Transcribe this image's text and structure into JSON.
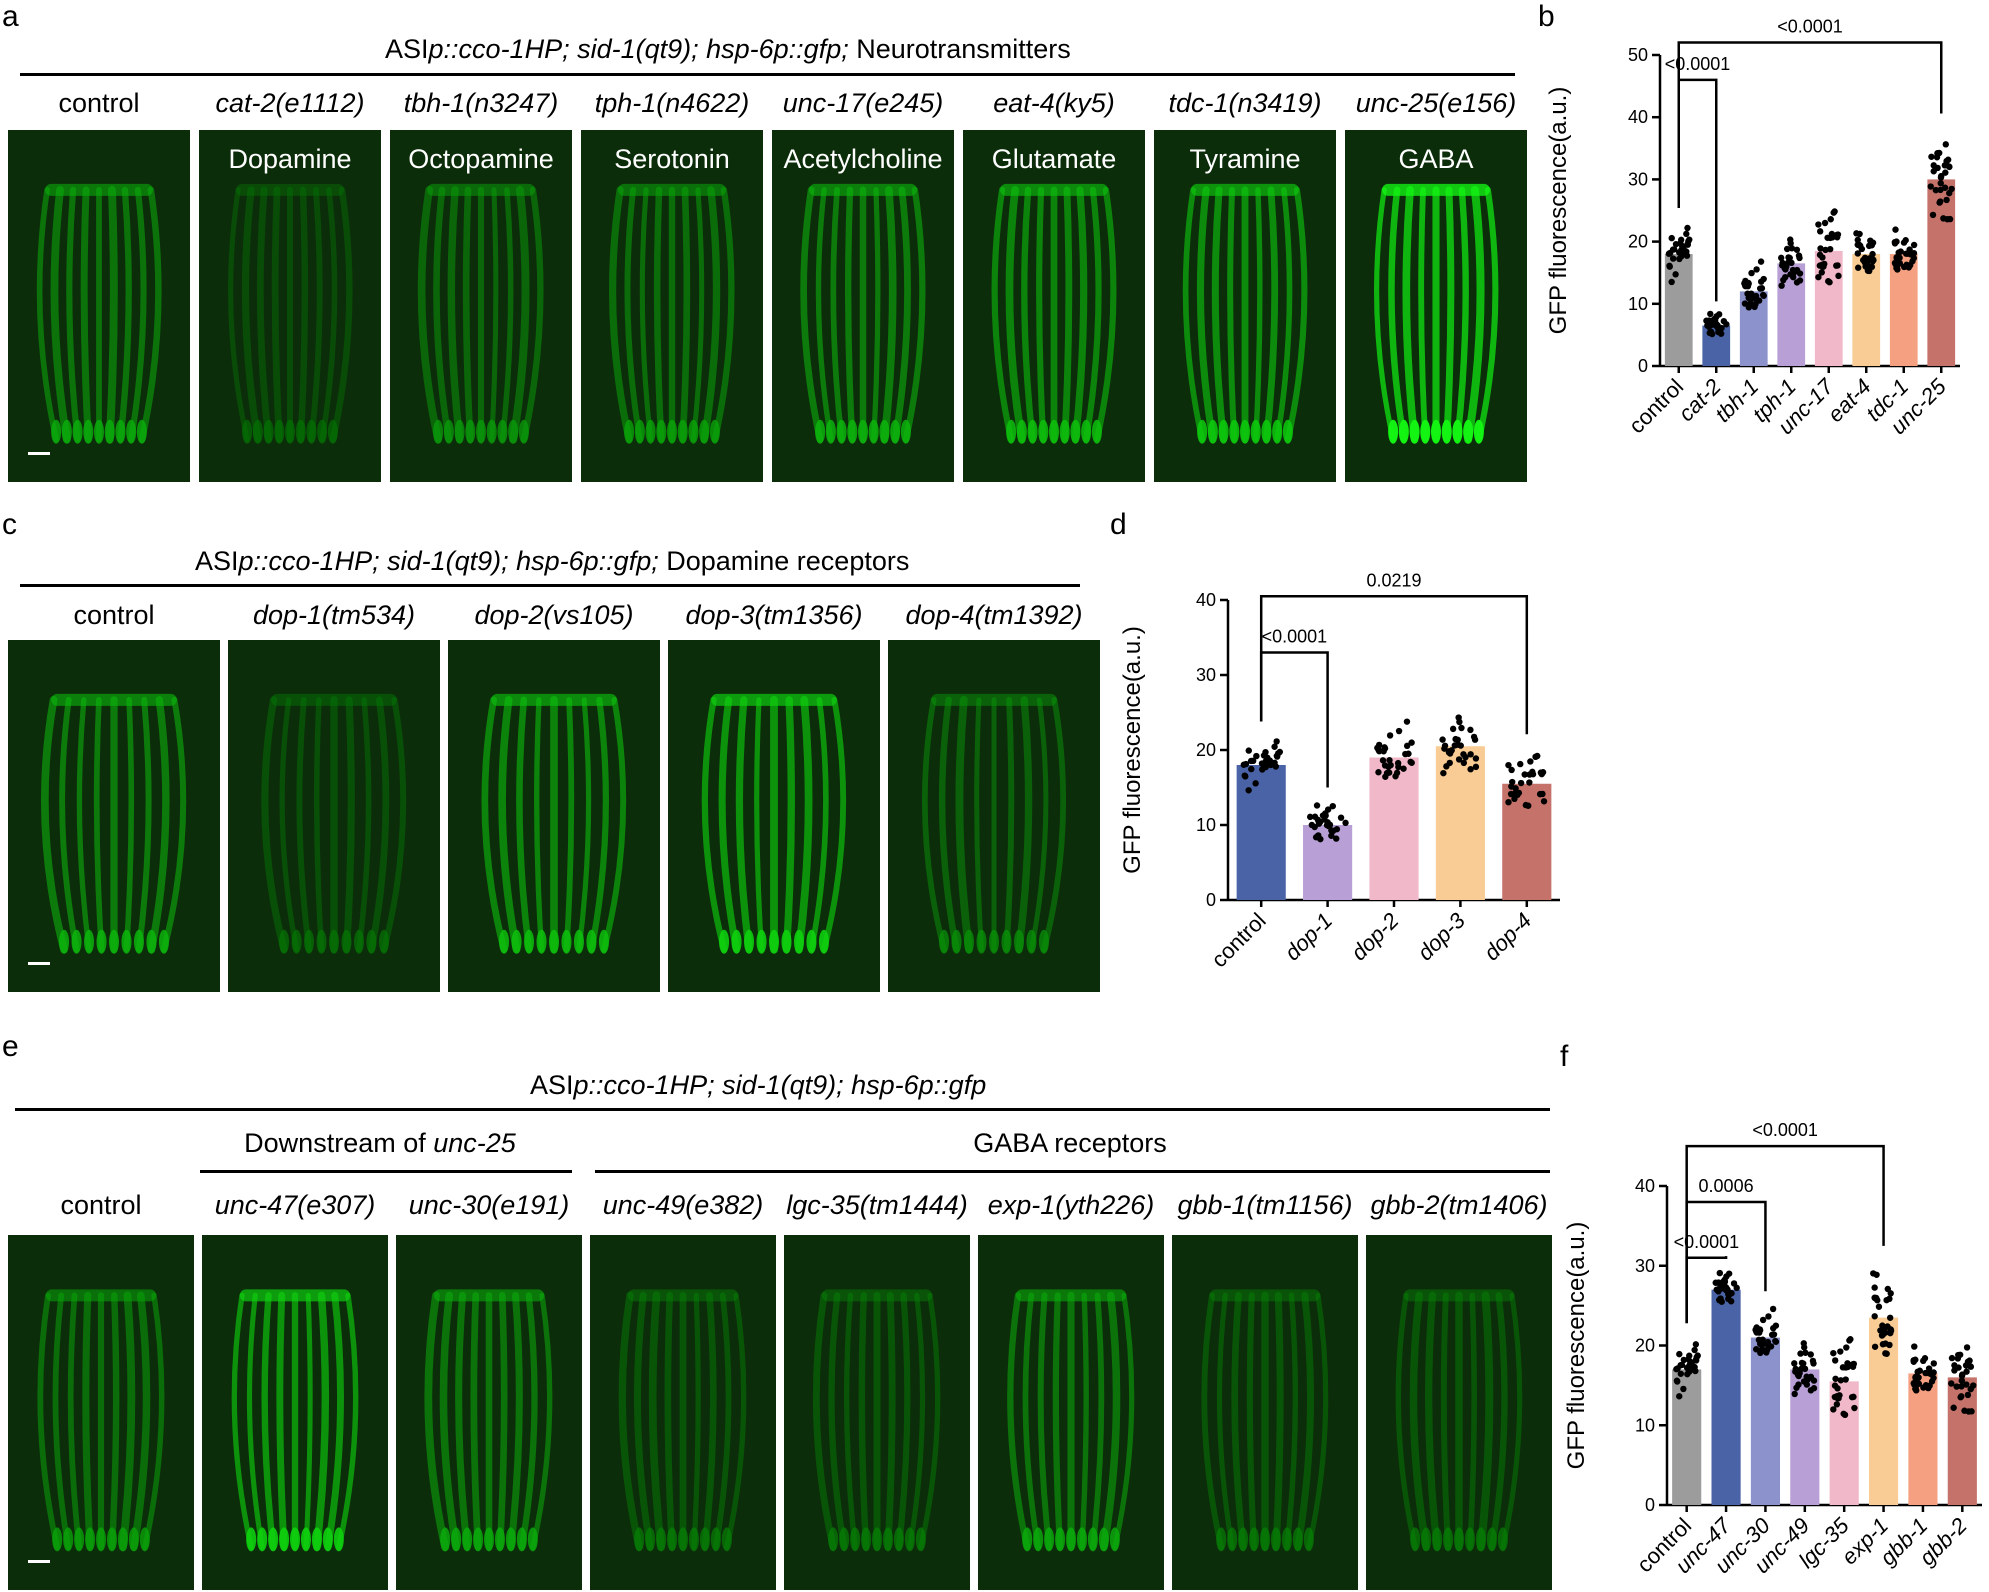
{
  "panel_letters": {
    "a": "a",
    "b": "b",
    "c": "c",
    "d": "d",
    "e": "e",
    "f": "f"
  },
  "section_a": {
    "title_prefix": "ASI",
    "title_italic": "p::cco-1HP; sid-1(qt9); hsp-6p::gfp;",
    "title_suffix": " Neurotransmitters",
    "strains": [
      "control",
      "cat-2(e1112)",
      "tbh-1(n3247)",
      "tph-1(n4622)",
      "unc-17(e245)",
      "eat-4(ky5)",
      "tdc-1(n3419)",
      "unc-25(e156)"
    ],
    "transmitters": [
      "",
      "Dopamine",
      "Octopamine",
      "Serotonin",
      "Acetylcholine",
      "Glutamate",
      "Tyramine",
      "GABA"
    ],
    "intensity": [
      0.55,
      0.22,
      0.45,
      0.5,
      0.6,
      0.65,
      0.7,
      0.95
    ]
  },
  "section_c": {
    "title_prefix": "ASI",
    "title_italic": "p::cco-1HP; sid-1(qt9); hsp-6p::gfp;",
    "title_suffix": " Dopamine receptors",
    "strains": [
      "control",
      "dop-1(tm534)",
      "dop-2(vs105)",
      "dop-3(tm1356)",
      "dop-4(tm1392)"
    ],
    "intensity": [
      0.6,
      0.25,
      0.65,
      0.75,
      0.4
    ]
  },
  "section_e": {
    "title_prefix": "ASI",
    "title_italic": "p::cco-1HP; sid-1(qt9); hsp-6p::gfp",
    "group1_prefix": "Downstream of ",
    "group1_italic": "unc-25",
    "group2": "GABA receptors",
    "strains": [
      "control",
      "unc-47(e307)",
      "unc-30(e191)",
      "unc-49(e382)",
      "lgc-35(tm1444)",
      "exp-1(yth226)",
      "gbb-1(tm1156)",
      "gbb-2(tm1406)"
    ],
    "intensity": [
      0.5,
      0.75,
      0.55,
      0.3,
      0.3,
      0.55,
      0.3,
      0.3
    ]
  },
  "chart_data": [
    {
      "type": "bar",
      "panel": "b",
      "ylabel": "GFP fluorescence(a.u.)",
      "ylim": [
        0,
        50
      ],
      "yticks": [
        0,
        10,
        20,
        30,
        40,
        50
      ],
      "categories": [
        "control",
        "cat-2",
        "tbh-1",
        "tph-1",
        "unc-17",
        "eat-4",
        "tdc-1",
        "unc-25"
      ],
      "values": [
        18,
        6.5,
        12,
        16.5,
        18.5,
        18,
        18,
        30
      ],
      "spread": [
        4,
        1.8,
        4,
        3.5,
        6,
        3,
        3.5,
        6
      ],
      "colors": [
        "#9c9c9c",
        "#4a62a6",
        "#8c92cc",
        "#b8a0d6",
        "#f0b8c8",
        "#f8cc94",
        "#f5a080",
        "#c4726a"
      ],
      "comparisons": [
        {
          "from": 0,
          "to": 1,
          "label": "<0.0001",
          "y": 46
        },
        {
          "from": 0,
          "to": 7,
          "label": "<0.0001",
          "y": 52
        }
      ]
    },
    {
      "type": "bar",
      "panel": "d",
      "ylabel": "GFP fluorescence(a.u.)",
      "ylim": [
        0,
        40
      ],
      "yticks": [
        0,
        10,
        20,
        30,
        40
      ],
      "categories": [
        "control",
        "dop-1",
        "dop-2",
        "dop-3",
        "dop-4"
      ],
      "values": [
        18,
        10,
        19,
        20.5,
        15.5
      ],
      "spread": [
        3,
        2.5,
        4,
        3.5,
        3.5
      ],
      "colors": [
        "#4a62a6",
        "#b8a0d6",
        "#f0b8c8",
        "#f8cc94",
        "#c4726a"
      ],
      "comparisons": [
        {
          "from": 0,
          "to": 1,
          "label": "<0.0001",
          "y": 33
        },
        {
          "from": 0,
          "to": 4,
          "label": "0.0219",
          "y": 40.5
        }
      ]
    },
    {
      "type": "bar",
      "panel": "f",
      "ylabel": "GFP fluorescence(a.u.)",
      "ylim": [
        0,
        40
      ],
      "yticks": [
        0,
        10,
        20,
        30,
        40
      ],
      "categories": [
        "control",
        "unc-47",
        "unc-30",
        "unc-49",
        "lgc-35",
        "exp-1",
        "gbb-1",
        "gbb-2"
      ],
      "values": [
        17,
        27,
        21,
        17,
        15.5,
        23.5,
        16.5,
        16
      ],
      "spread": [
        3,
        2,
        3,
        3,
        5,
        5,
        3,
        4
      ],
      "colors": [
        "#9c9c9c",
        "#4a62a6",
        "#8c92cc",
        "#b8a0d6",
        "#f0b8c8",
        "#f8cc94",
        "#f5a080",
        "#c4726a"
      ],
      "comparisons": [
        {
          "from": 0,
          "to": 1,
          "label": "<0.0001",
          "y": 31
        },
        {
          "from": 0,
          "to": 2,
          "label": "0.0006",
          "y": 38
        },
        {
          "from": 0,
          "to": 5,
          "label": "<0.0001",
          "y": 45
        }
      ]
    }
  ]
}
